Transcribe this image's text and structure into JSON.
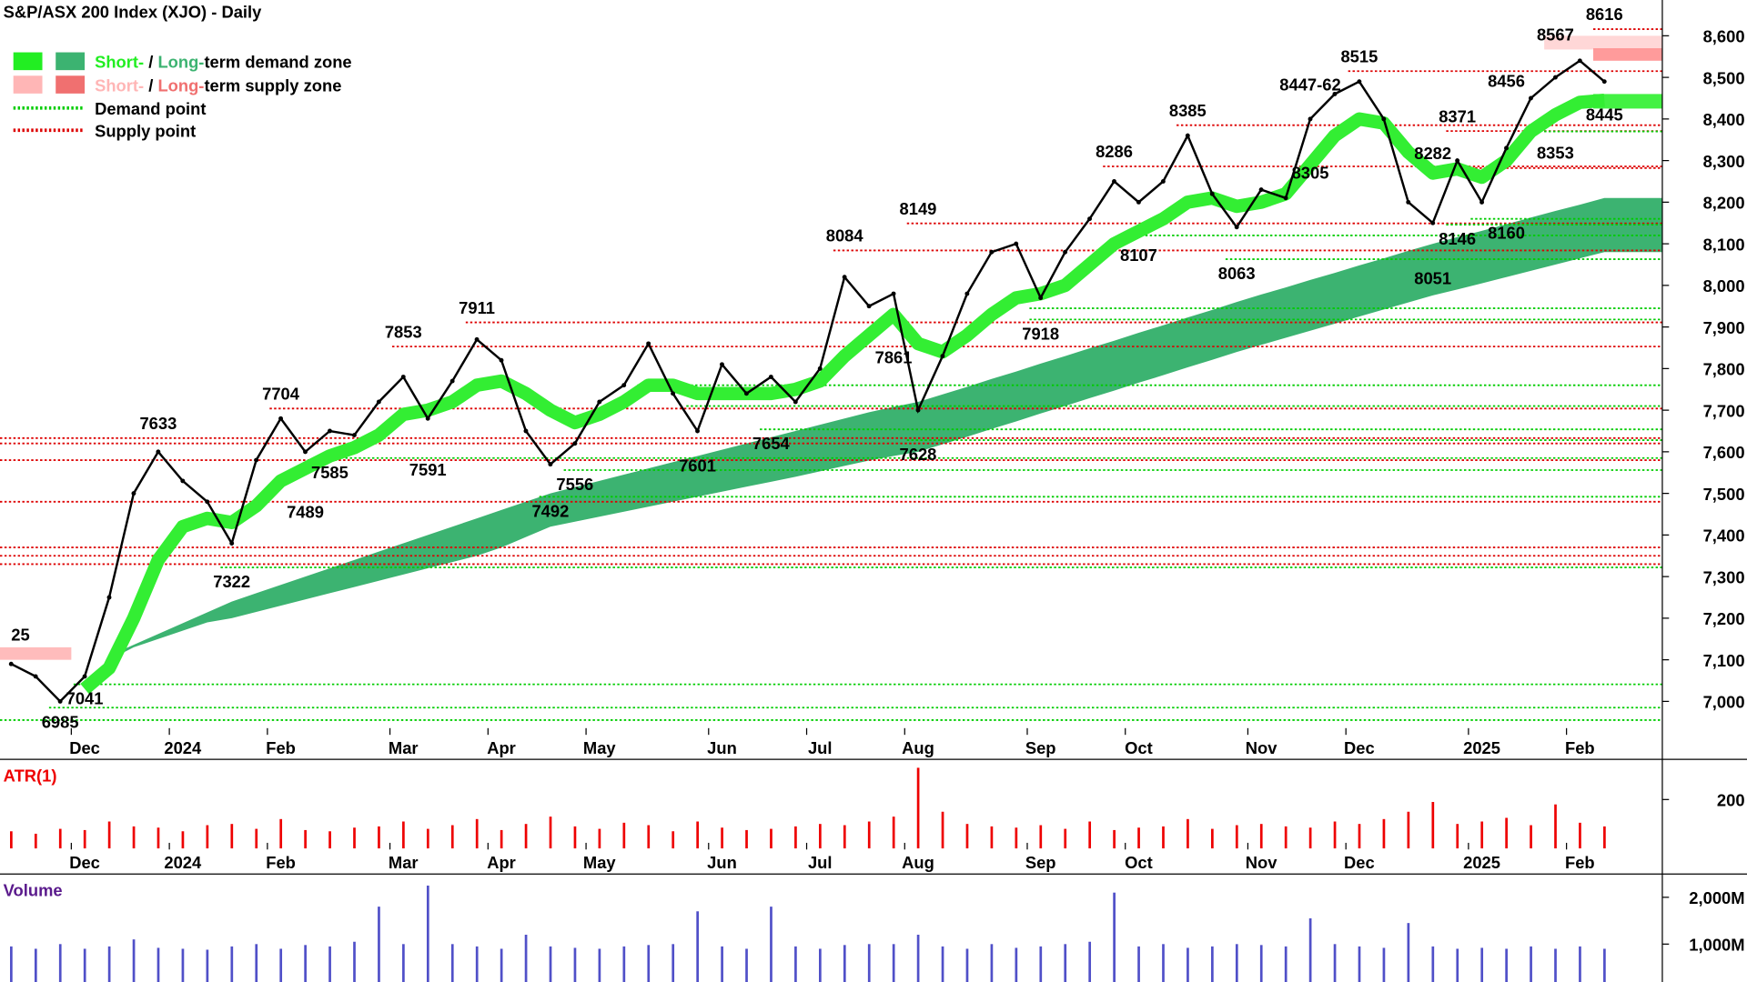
{
  "chart_data": [
    {
      "type": "line",
      "title": "S&P/ASX 200 Index (XJO) - Daily",
      "color": "#000000",
      "categories": [
        null,
        null,
        null,
        "Dec",
        null,
        null,
        null,
        "2024",
        null,
        null,
        null,
        "Feb",
        null,
        null,
        null,
        null,
        "Mar",
        null,
        null,
        null,
        "Apr",
        null,
        null,
        null,
        "May",
        null,
        null,
        null,
        null,
        "Jun",
        null,
        null,
        null,
        "Jul",
        null,
        null,
        null,
        "Aug",
        null,
        null,
        null,
        null,
        "Sep",
        null,
        null,
        null,
        "Oct",
        null,
        null,
        null,
        null,
        "Nov",
        null,
        null,
        null,
        "Dec",
        null,
        null,
        null,
        null,
        "2025",
        null,
        null,
        null,
        "Feb",
        null
      ],
      "values": [
        7090,
        7060,
        7000,
        7060,
        7250,
        7500,
        7600,
        7530,
        7480,
        7380,
        7580,
        7680,
        7600,
        7650,
        7640,
        7720,
        7780,
        7680,
        7770,
        7870,
        7820,
        7650,
        7570,
        7620,
        7720,
        7760,
        7860,
        7740,
        7650,
        7810,
        7740,
        7780,
        7720,
        7800,
        8020,
        7950,
        7980,
        7700,
        7830,
        7980,
        8080,
        8100,
        7970,
        8080,
        8160,
        8250,
        8200,
        8250,
        8360,
        8220,
        8140,
        8230,
        8210,
        8400,
        8460,
        8490,
        8400,
        8200,
        8150,
        8300,
        8200,
        8330,
        8450,
        8500,
        8540,
        8490
      ],
      "long_term_demand_zone": {
        "color": "#3cb371",
        "upper": [
          null,
          null,
          null,
          null,
          7110,
          7136,
          7162,
          7188,
          7214,
          7240,
          7260,
          7280,
          7300,
          7320,
          7340,
          7360,
          7380,
          7400,
          7420,
          7440,
          7460,
          7480,
          7500,
          7515,
          7530,
          7545,
          7560,
          7575,
          7590,
          7605,
          7620,
          7635,
          7650,
          7665,
          7680,
          7695,
          7708,
          7720,
          7738,
          7756,
          7775,
          7793,
          7812,
          7830,
          7849,
          7867,
          7886,
          7904,
          7923,
          7941,
          7960,
          7978,
          7995,
          8013,
          8030,
          8048,
          8065,
          8083,
          8100,
          8116,
          8131,
          8147,
          8163,
          8179,
          8194,
          8210
        ],
        "lower": [
          null,
          null,
          null,
          null,
          7100,
          7130,
          7150,
          7170,
          7190,
          7200,
          7215,
          7230,
          7245,
          7260,
          7275,
          7290,
          7305,
          7320,
          7335,
          7350,
          7370,
          7395,
          7420,
          7432,
          7444,
          7456,
          7468,
          7480,
          7492,
          7504,
          7516,
          7528,
          7540,
          7553,
          7566,
          7579,
          7590,
          7600,
          7618,
          7636,
          7655,
          7673,
          7692,
          7710,
          7729,
          7747,
          7766,
          7784,
          7803,
          7821,
          7840,
          7857,
          7874,
          7891,
          7908,
          7925,
          7942,
          7959,
          7976,
          7990,
          8005,
          8020,
          8035,
          8050,
          8065,
          8080
        ]
      },
      "short_term_demand_zone": {
        "color": "#33ee33",
        "values": [
          null,
          null,
          null,
          7030,
          7080,
          7200,
          7340,
          7420,
          7440,
          7430,
          7470,
          7530,
          7560,
          7590,
          7610,
          7640,
          7690,
          7700,
          7720,
          7760,
          7770,
          7740,
          7700,
          7670,
          7690,
          7720,
          7760,
          7760,
          7740,
          7740,
          7740,
          7740,
          7750,
          7770,
          7830,
          7880,
          7930,
          7860,
          7840,
          7880,
          7930,
          7970,
          7980,
          8000,
          8050,
          8100,
          8130,
          8160,
          8200,
          8210,
          8190,
          8200,
          8220,
          8290,
          8360,
          8400,
          8390,
          8320,
          8270,
          8280,
          8260,
          8300,
          8370,
          8410,
          8440,
          8445
        ]
      },
      "zones": [
        {
          "low": 7100,
          "high": 7130,
          "from": 0,
          "to": 2,
          "color": "#ffb0b0"
        },
        {
          "low": 8567,
          "high": 8600,
          "from": 63,
          "color": "#ffd0d0"
        },
        {
          "low": 8540,
          "high": 8570,
          "from": 65,
          "color": "#ff8a8a"
        },
        {
          "low": 8425,
          "high": 8460,
          "from": 65,
          "color": "#22ee22"
        }
      ],
      "supply_points": {
        "color": "#dd0000",
        "levels": [
          {
            "value": 8616,
            "from": 65
          },
          {
            "value": 8515,
            "from": 55
          },
          {
            "value": 8385,
            "from": 48
          },
          {
            "value": 8371,
            "from": 59
          },
          {
            "value": 8286,
            "from": 45
          },
          {
            "value": 8282,
            "from": 58
          },
          {
            "value": 8149,
            "from": 37
          },
          {
            "value": 8084,
            "from": 34
          },
          {
            "value": 7911,
            "from": 19
          },
          {
            "value": 7853,
            "from": 16
          },
          {
            "value": 7704,
            "from": 11
          },
          {
            "value": 7633,
            "from": 0
          },
          {
            "value": 7620,
            "from": 0
          },
          {
            "value": 7580,
            "from": 0
          },
          {
            "value": 7480,
            "from": 0
          },
          {
            "value": 7370,
            "from": 0
          },
          {
            "value": 7350,
            "from": 0
          },
          {
            "value": 7330,
            "from": 0
          }
        ]
      },
      "demand_points": {
        "color": "#00cc00",
        "levels": [
          {
            "value": 8370,
            "from": 63
          },
          {
            "value": 8160,
            "from": 60
          },
          {
            "value": 8146,
            "from": 59
          },
          {
            "value": 8120,
            "from": 46
          },
          {
            "value": 8063,
            "from": 50
          },
          {
            "value": 7945,
            "from": 42
          },
          {
            "value": 7918,
            "from": 42
          },
          {
            "value": 7760,
            "from": 26
          },
          {
            "value": 7710,
            "from": 28
          },
          {
            "value": 7654,
            "from": 31
          },
          {
            "value": 7628,
            "from": 37
          },
          {
            "value": 7585,
            "from": 13
          },
          {
            "value": 7556,
            "from": 23
          },
          {
            "value": 7492,
            "from": 22
          },
          {
            "value": 7322,
            "from": 9
          },
          {
            "value": 7041,
            "from": 3
          },
          {
            "value": 6985,
            "from": 2
          },
          {
            "value": 6955,
            "from": 0
          }
        ]
      },
      "annotations": [
        {
          "value": 25,
          "y": 7125,
          "x": 0
        },
        {
          "value": 6985,
          "x": 2
        },
        {
          "value": 7041,
          "x": 3
        },
        {
          "value": 7633,
          "x": 6
        },
        {
          "value": 7322,
          "x": 9
        },
        {
          "value": 7704,
          "x": 11
        },
        {
          "value": 7489,
          "x": 12
        },
        {
          "value": 7585,
          "x": 13
        },
        {
          "value": 7853,
          "x": 16
        },
        {
          "value": 7591,
          "x": 17
        },
        {
          "value": 7911,
          "x": 19
        },
        {
          "value": 7492,
          "x": 22
        },
        {
          "value": 7556,
          "x": 23
        },
        {
          "value": 7601,
          "x": 28
        },
        {
          "value": 7654,
          "x": 31
        },
        {
          "value": 8084,
          "x": 34
        },
        {
          "value": 7861,
          "x": 36
        },
        {
          "value": 8149,
          "x": 37
        },
        {
          "value": 7628,
          "x": 37
        },
        {
          "value": 7918,
          "x": 42
        },
        {
          "value": 8286,
          "x": 45
        },
        {
          "value": 8107,
          "x": 46
        },
        {
          "value": 8385,
          "x": 48
        },
        {
          "value": 8063,
          "x": 50
        },
        {
          "value": 8447,
          "label": "8447-62",
          "x": 53
        },
        {
          "value": 8305,
          "x": 53
        },
        {
          "value": 8515,
          "x": 55
        },
        {
          "value": 8051,
          "x": 58
        },
        {
          "value": 8282,
          "x": 58
        },
        {
          "value": 8146,
          "x": 59
        },
        {
          "value": 8371,
          "x": 59
        },
        {
          "value": 8160,
          "x": 61
        },
        {
          "value": 8456,
          "x": 61
        },
        {
          "value": 8353,
          "x": 63
        },
        {
          "value": 8567,
          "x": 63
        },
        {
          "value": 8445,
          "x": 65
        },
        {
          "value": 8616,
          "x": 65
        }
      ],
      "legend": [
        {
          "short": "Short-",
          "sep": " / ",
          "long": "Long-",
          "rest": "term demand zone",
          "colors": [
            "#22ee22",
            "#3cb371"
          ]
        },
        {
          "short": "Short-",
          "sep": " / ",
          "long": "Long-",
          "rest": "term supply zone",
          "colors": [
            "#ffb6b6",
            "#f07070"
          ]
        },
        {
          "label": "Demand point",
          "color": "#00cc00"
        },
        {
          "label": "Supply point",
          "color": "#dd0000"
        }
      ],
      "ylim": [
        6933,
        8686
      ],
      "yticks": [
        {
          "value": 7000,
          "label": "7,000"
        },
        {
          "value": 7100,
          "label": "7,100"
        },
        {
          "value": 7200,
          "label": "7,200"
        },
        {
          "value": 7300,
          "label": "7,300"
        },
        {
          "value": 7400,
          "label": "7,400"
        },
        {
          "value": 7500,
          "label": "7,500"
        },
        {
          "value": 7600,
          "label": "7,600"
        },
        {
          "value": 7700,
          "label": "7,700"
        },
        {
          "value": 7800,
          "label": "7,800"
        },
        {
          "value": 7900,
          "label": "7,900"
        },
        {
          "value": 8000,
          "label": "8,000"
        },
        {
          "value": 8100,
          "label": "8,100"
        },
        {
          "value": 8200,
          "label": "8,200"
        },
        {
          "value": 8300,
          "label": "8,300"
        },
        {
          "value": 8400,
          "label": "8,400"
        },
        {
          "value": 8500,
          "label": "8,500"
        },
        {
          "value": 8600,
          "label": "8,600"
        }
      ]
    },
    {
      "type": "bar",
      "title": "ATR(1)",
      "color": "#ee0000",
      "values": [
        70,
        60,
        80,
        75,
        110,
        90,
        85,
        70,
        95,
        100,
        80,
        120,
        75,
        70,
        85,
        90,
        110,
        80,
        95,
        120,
        75,
        100,
        130,
        90,
        80,
        105,
        95,
        70,
        110,
        85,
        75,
        80,
        90,
        100,
        95,
        110,
        130,
        330,
        150,
        100,
        90,
        85,
        95,
        80,
        110,
        75,
        85,
        90,
        120,
        80,
        95,
        100,
        90,
        85,
        110,
        100,
        120,
        150,
        190,
        100,
        110,
        125,
        95,
        180,
        105,
        90
      ],
      "ylim": [
        0,
        360
      ],
      "yticks": [
        200
      ]
    },
    {
      "type": "bar",
      "title": "Volume",
      "color": "#5050c8",
      "values": [
        950,
        900,
        1000,
        900,
        950,
        1100,
        920,
        900,
        880,
        950,
        1000,
        900,
        980,
        950,
        1050,
        1800,
        1000,
        2250,
        1000,
        950,
        900,
        1200,
        950,
        920,
        900,
        950,
        980,
        1000,
        1700,
        950,
        900,
        1800,
        950,
        900,
        980,
        1000,
        1000,
        1200,
        950,
        900,
        1000,
        920,
        950,
        1000,
        1050,
        2100,
        950,
        1000,
        920,
        950,
        1000,
        980,
        950,
        1550,
        1000,
        950,
        920,
        1450,
        950,
        900,
        920,
        900,
        950,
        900,
        950,
        900
      ],
      "ylim": [
        190,
        2450
      ],
      "yticks": [
        {
          "value": 1000,
          "label": "1,000M"
        },
        {
          "value": 2000,
          "label": "2,000M"
        }
      ]
    }
  ]
}
